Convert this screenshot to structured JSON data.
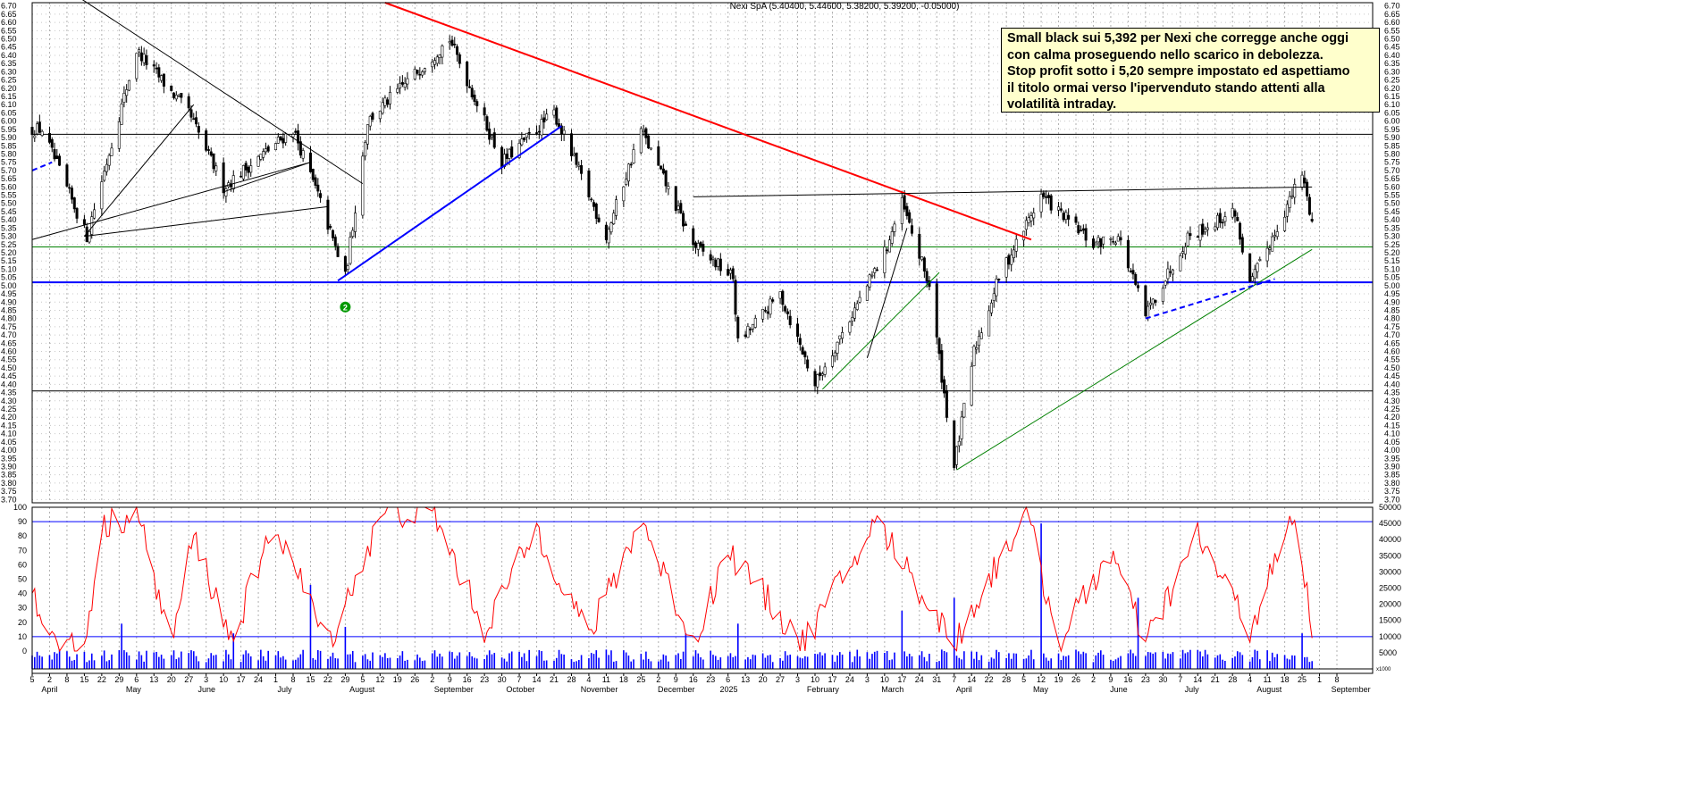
{
  "chart_data": [
    {
      "type": "candlestick",
      "title": "Nexi SpA (5.40400, 5.44600, 5.38200, 5.39200, -0.05000)",
      "ylim": [
        3.68,
        6.72
      ],
      "y_ticks": [
        "6.70",
        "6.65",
        "6.60",
        "6.55",
        "6.50",
        "6.45",
        "6.40",
        "6.35",
        "6.30",
        "6.25",
        "6.20",
        "6.15",
        "6.10",
        "6.05",
        "6.00",
        "5.95",
        "5.90",
        "5.85",
        "5.80",
        "5.75",
        "5.70",
        "5.65",
        "5.60",
        "5.55",
        "5.50",
        "5.45",
        "5.40",
        "5.35",
        "5.30",
        "5.25",
        "5.20",
        "5.15",
        "5.10",
        "5.05",
        "5.00",
        "4.95",
        "4.90",
        "4.85",
        "4.80",
        "4.75",
        "4.70",
        "4.65",
        "4.60",
        "4.55",
        "4.50",
        "4.45",
        "4.40",
        "4.35",
        "4.30",
        "4.25",
        "4.20",
        "4.15",
        "4.10",
        "4.05",
        "4.00",
        "3.95",
        "3.90",
        "3.85",
        "3.80",
        "3.75",
        "3.70"
      ],
      "last_values": {
        "open": 5.404,
        "high": 5.446,
        "low": 5.382,
        "close": 5.392,
        "change": -0.05
      },
      "anchor_prices": [
        {
          "date": "2024-04-05",
          "price": 5.95
        },
        {
          "date": "2024-04-23",
          "price": 5.3
        },
        {
          "date": "2024-05-13",
          "price": 6.43
        },
        {
          "date": "2024-06-03",
          "price": 6.05
        },
        {
          "date": "2024-06-17",
          "price": 5.6
        },
        {
          "date": "2024-07-15",
          "price": 5.95
        },
        {
          "date": "2024-07-25",
          "price": 5.55
        },
        {
          "date": "2024-08-05",
          "price": 5.05
        },
        {
          "date": "2024-08-14",
          "price": 6.0
        },
        {
          "date": "2024-09-16",
          "price": 6.5
        },
        {
          "date": "2024-10-07",
          "price": 5.75
        },
        {
          "date": "2024-10-28",
          "price": 6.05
        },
        {
          "date": "2024-11-18",
          "price": 5.3
        },
        {
          "date": "2024-12-02",
          "price": 5.95
        },
        {
          "date": "2024-12-23",
          "price": 5.25
        },
        {
          "date": "2025-01-08",
          "price": 5.05
        },
        {
          "date": "2025-01-10",
          "price": 4.65
        },
        {
          "date": "2025-01-27",
          "price": 4.95
        },
        {
          "date": "2025-02-10",
          "price": 4.4
        },
        {
          "date": "2025-03-10",
          "price": 5.2
        },
        {
          "date": "2025-03-17",
          "price": 5.5
        },
        {
          "date": "2025-03-28",
          "price": 5.0
        },
        {
          "date": "2025-04-07",
          "price": 3.9
        },
        {
          "date": "2025-04-15",
          "price": 4.6
        },
        {
          "date": "2025-04-25",
          "price": 5.05
        },
        {
          "date": "2025-05-12",
          "price": 5.55
        },
        {
          "date": "2025-06-02",
          "price": 5.25
        },
        {
          "date": "2025-06-12",
          "price": 5.3
        },
        {
          "date": "2025-06-23",
          "price": 4.82
        },
        {
          "date": "2025-07-10",
          "price": 5.3
        },
        {
          "date": "2025-07-29",
          "price": 5.45
        },
        {
          "date": "2025-08-04",
          "price": 5.0
        },
        {
          "date": "2025-08-25",
          "price": 5.68
        },
        {
          "date": "2025-08-29",
          "price": 5.39
        }
      ],
      "horizontal_lines": [
        {
          "price": 5.92,
          "color": "#000000"
        },
        {
          "price": 5.235,
          "color": "#008000"
        },
        {
          "price": 5.02,
          "color": "#0000ff"
        },
        {
          "price": 4.36,
          "color": "#000000"
        }
      ],
      "trend_lines": [
        {
          "color": "#ff0000",
          "from": {
            "date": "2024-08-21",
            "price": 6.72
          },
          "to": {
            "date": "2025-05-08",
            "price": 5.28
          }
        },
        {
          "color": "#0000ff",
          "from": {
            "date": "2024-08-02",
            "price": 5.03
          },
          "to": {
            "date": "2024-10-31",
            "price": 5.97
          }
        },
        {
          "color": "#008000",
          "from": {
            "date": "2025-04-08",
            "price": 3.88
          },
          "to": {
            "date": "2025-08-29",
            "price": 5.22
          }
        },
        {
          "color": "#008000",
          "from": {
            "date": "2025-02-13",
            "price": 4.37
          },
          "to": {
            "date": "2025-04-01",
            "price": 5.08
          }
        },
        {
          "color": "#000000",
          "from": {
            "date": "2025-03-03",
            "price": 4.56
          },
          "to": {
            "date": "2025-03-19",
            "price": 5.35
          }
        },
        {
          "color": "#000000",
          "from": {
            "date": "2024-12-23",
            "price": 5.54
          },
          "to": {
            "date": "2025-08-29",
            "price": 5.6
          }
        },
        {
          "color": "#000000",
          "from": {
            "date": "2024-04-15",
            "price": 6.8
          },
          "to": {
            "date": "2024-08-12",
            "price": 5.62
          }
        },
        {
          "color": "#000000",
          "from": {
            "date": "2024-04-01",
            "price": 5.28
          },
          "to": {
            "date": "2024-07-22",
            "price": 5.75
          }
        },
        {
          "color": "#000000",
          "from": {
            "date": "2024-04-22",
            "price": 5.3
          },
          "to": {
            "date": "2024-07-29",
            "price": 5.48
          }
        },
        {
          "color": "#000000",
          "from": {
            "date": "2024-04-22",
            "price": 5.3
          },
          "to": {
            "date": "2024-06-05",
            "price": 6.1
          }
        },
        {
          "color": "#000000",
          "from": {
            "date": "2024-06-17",
            "price": 5.57
          },
          "to": {
            "date": "2024-07-22",
            "price": 5.75
          }
        },
        {
          "color": "#0000ff",
          "dashed": true,
          "from": {
            "date": "2025-06-23",
            "price": 4.8
          },
          "to": {
            "date": "2025-08-14",
            "price": 5.04
          }
        },
        {
          "color": "#0000ff",
          "dashed": true,
          "from": {
            "date": "2024-04-01",
            "price": 5.7
          },
          "to": {
            "date": "2024-04-09",
            "price": 5.75
          }
        }
      ],
      "markers": [
        {
          "label": "2",
          "date": "2024-08-05",
          "price": 4.87,
          "color": "#009900"
        }
      ]
    },
    {
      "type": "line",
      "indicator": "oscillator",
      "ylim": [
        0,
        100
      ],
      "y_ticks": [
        "100",
        "90",
        "80",
        "70",
        "60",
        "50",
        "40",
        "30",
        "20",
        "10",
        "0"
      ],
      "reference_lines": [
        90,
        10
      ],
      "anchors": [
        {
          "date": "2024-04-01",
          "value": 40
        },
        {
          "date": "2024-04-10",
          "value": 5
        },
        {
          "date": "2024-04-22",
          "value": 2
        },
        {
          "date": "2024-04-29",
          "value": 85
        },
        {
          "date": "2024-05-13",
          "value": 98
        },
        {
          "date": "2024-05-27",
          "value": 5
        },
        {
          "date": "2024-06-05",
          "value": 80
        },
        {
          "date": "2024-06-20",
          "value": 8
        },
        {
          "date": "2024-07-08",
          "value": 88
        },
        {
          "date": "2024-07-29",
          "value": 5
        },
        {
          "date": "2024-08-20",
          "value": 95
        },
        {
          "date": "2024-09-09",
          "value": 98
        },
        {
          "date": "2024-09-30",
          "value": 15
        },
        {
          "date": "2024-10-21",
          "value": 85
        },
        {
          "date": "2024-11-11",
          "value": 10
        },
        {
          "date": "2024-12-02",
          "value": 92
        },
        {
          "date": "2024-12-23",
          "value": 5
        },
        {
          "date": "2025-01-06",
          "value": 70
        },
        {
          "date": "2025-02-05",
          "value": 5
        },
        {
          "date": "2025-03-07",
          "value": 90
        },
        {
          "date": "2025-04-07",
          "value": 5
        },
        {
          "date": "2025-05-06",
          "value": 98
        },
        {
          "date": "2025-05-19",
          "value": 5
        },
        {
          "date": "2025-06-09",
          "value": 70
        },
        {
          "date": "2025-06-23",
          "value": 5
        },
        {
          "date": "2025-07-14",
          "value": 80
        },
        {
          "date": "2025-08-04",
          "value": 15
        },
        {
          "date": "2025-08-22",
          "value": 95
        },
        {
          "date": "2025-08-29",
          "value": 15
        }
      ]
    },
    {
      "type": "bar",
      "indicator": "volume",
      "ylim": [
        0,
        50000
      ],
      "y_ticks": [
        "50000",
        "45000",
        "40000",
        "35000",
        "30000",
        "25000",
        "20000",
        "15000",
        "10000",
        "5000"
      ],
      "scale_label": "x1000",
      "baseline": 6000,
      "spikes": [
        {
          "date": "2024-05-07",
          "value": 14000
        },
        {
          "date": "2024-06-21",
          "value": 11000
        },
        {
          "date": "2024-07-22",
          "value": 26000
        },
        {
          "date": "2024-08-05",
          "value": 13000
        },
        {
          "date": "2024-12-20",
          "value": 11000
        },
        {
          "date": "2025-01-10",
          "value": 14000
        },
        {
          "date": "2025-03-17",
          "value": 18000
        },
        {
          "date": "2025-04-07",
          "value": 22000
        },
        {
          "date": "2025-05-12",
          "value": 45000
        },
        {
          "date": "2025-06-20",
          "value": 22000
        },
        {
          "date": "2025-08-25",
          "value": 11000
        }
      ]
    }
  ],
  "x_axis": {
    "day_ticks": [
      {
        "date": "2024-04-01",
        "label": "5"
      },
      {
        "date": "2024-04-08",
        "label": "2"
      },
      {
        "date": "2024-04-15",
        "label": "8"
      },
      {
        "date": "2024-04-22",
        "label": "15"
      },
      {
        "date": "2024-04-29",
        "label": "22"
      },
      {
        "date": "2024-05-06",
        "label": "29"
      },
      {
        "date": "2024-05-13",
        "label": "6"
      },
      {
        "date": "2024-05-20",
        "label": "13"
      },
      {
        "date": "2024-05-27",
        "label": "20"
      },
      {
        "date": "2024-06-03",
        "label": "27"
      },
      {
        "date": "2024-06-10",
        "label": "3"
      },
      {
        "date": "2024-06-17",
        "label": "10"
      },
      {
        "date": "2024-06-24",
        "label": "17"
      },
      {
        "date": "2024-07-01",
        "label": "24"
      },
      {
        "date": "2024-07-08",
        "label": "1"
      },
      {
        "date": "2024-07-15",
        "label": "8"
      },
      {
        "date": "2024-07-22",
        "label": "15"
      },
      {
        "date": "2024-07-29",
        "label": "22"
      },
      {
        "date": "2024-08-05",
        "label": "29"
      },
      {
        "date": "2024-08-12",
        "label": "5"
      },
      {
        "date": "2024-08-19",
        "label": "12"
      },
      {
        "date": "2024-08-26",
        "label": "19"
      },
      {
        "date": "2024-09-02",
        "label": "26"
      },
      {
        "date": "2024-09-09",
        "label": "2"
      },
      {
        "date": "2024-09-16",
        "label": "9"
      },
      {
        "date": "2024-09-23",
        "label": "16"
      },
      {
        "date": "2024-09-30",
        "label": "23"
      },
      {
        "date": "2024-10-07",
        "label": "30"
      },
      {
        "date": "2024-10-14",
        "label": "7"
      },
      {
        "date": "2024-10-21",
        "label": "14"
      },
      {
        "date": "2024-10-28",
        "label": "21"
      },
      {
        "date": "2024-11-04",
        "label": "28"
      },
      {
        "date": "2024-11-11",
        "label": "4"
      },
      {
        "date": "2024-11-18",
        "label": "11"
      },
      {
        "date": "2024-11-25",
        "label": "18"
      },
      {
        "date": "2024-12-02",
        "label": "25"
      },
      {
        "date": "2024-12-09",
        "label": "2"
      },
      {
        "date": "2024-12-16",
        "label": "9"
      },
      {
        "date": "2024-12-23",
        "label": "16"
      },
      {
        "date": "2024-12-30",
        "label": "23"
      },
      {
        "date": "2025-01-06",
        "label": "6"
      },
      {
        "date": "2025-01-13",
        "label": "13"
      },
      {
        "date": "2025-01-20",
        "label": "20"
      },
      {
        "date": "2025-01-27",
        "label": "27"
      },
      {
        "date": "2025-02-03",
        "label": "3"
      },
      {
        "date": "2025-02-10",
        "label": "10"
      },
      {
        "date": "2025-02-17",
        "label": "17"
      },
      {
        "date": "2025-02-24",
        "label": "24"
      },
      {
        "date": "2025-03-03",
        "label": "3"
      },
      {
        "date": "2025-03-10",
        "label": "10"
      },
      {
        "date": "2025-03-17",
        "label": "17"
      },
      {
        "date": "2025-03-24",
        "label": "24"
      },
      {
        "date": "2025-03-31",
        "label": "31"
      },
      {
        "date": "2025-04-07",
        "label": "7"
      },
      {
        "date": "2025-04-14",
        "label": "14"
      },
      {
        "date": "2025-04-21",
        "label": "22"
      },
      {
        "date": "2025-04-28",
        "label": "28"
      },
      {
        "date": "2025-05-05",
        "label": "5"
      },
      {
        "date": "2025-05-12",
        "label": "12"
      },
      {
        "date": "2025-05-19",
        "label": "19"
      },
      {
        "date": "2025-05-26",
        "label": "26"
      },
      {
        "date": "2025-06-02",
        "label": "2"
      },
      {
        "date": "2025-06-09",
        "label": "9"
      },
      {
        "date": "2025-06-16",
        "label": "16"
      },
      {
        "date": "2025-06-23",
        "label": "23"
      },
      {
        "date": "2025-06-30",
        "label": "30"
      },
      {
        "date": "2025-07-07",
        "label": "7"
      },
      {
        "date": "2025-07-14",
        "label": "14"
      },
      {
        "date": "2025-07-21",
        "label": "21"
      },
      {
        "date": "2025-07-28",
        "label": "28"
      },
      {
        "date": "2025-08-04",
        "label": "4"
      },
      {
        "date": "2025-08-11",
        "label": "11"
      },
      {
        "date": "2025-08-18",
        "label": "18"
      },
      {
        "date": "2025-08-25",
        "label": "25"
      },
      {
        "date": "2025-09-01",
        "label": "1"
      },
      {
        "date": "2025-09-08",
        "label": "8"
      }
    ],
    "month_ticks": [
      {
        "date": "2024-04-04",
        "label": "April"
      },
      {
        "date": "2024-05-08",
        "label": "May"
      },
      {
        "date": "2024-06-06",
        "label": "June"
      },
      {
        "date": "2024-07-08",
        "label": "July"
      },
      {
        "date": "2024-08-06",
        "label": "August"
      },
      {
        "date": "2024-09-09",
        "label": "September"
      },
      {
        "date": "2024-10-08",
        "label": "October"
      },
      {
        "date": "2024-11-07",
        "label": "November"
      },
      {
        "date": "2024-12-08",
        "label": "December"
      },
      {
        "date": "2025-01-02",
        "label": "2025"
      },
      {
        "date": "2025-02-06",
        "label": "February"
      },
      {
        "date": "2025-03-08",
        "label": "March"
      },
      {
        "date": "2025-04-07",
        "label": "April"
      },
      {
        "date": "2025-05-08",
        "label": "May"
      },
      {
        "date": "2025-06-08",
        "label": "June"
      },
      {
        "date": "2025-07-08",
        "label": "July"
      },
      {
        "date": "2025-08-06",
        "label": "August"
      },
      {
        "date": "2025-09-05",
        "label": "September"
      }
    ]
  },
  "annotation": {
    "lines": [
      "Small black sui 5,392 per Nexi che corregge anche oggi",
      "con calma proseguendo nello scarico in debolezza.",
      "Stop profit sotto i 5,20 sempre impostato ed aspettiamo",
      "il titolo ormai verso l'ipervenduto stando attenti alla",
      "volatilità intraday."
    ]
  },
  "colors": {
    "price_up": "#ffffff",
    "price_down": "#000000",
    "oscillator": "#ff0000",
    "volume": "#0000ff",
    "annotation_bg": "#ffffcc"
  }
}
